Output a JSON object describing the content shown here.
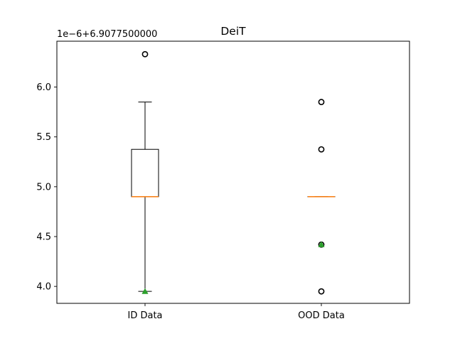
{
  "chart_data": {
    "type": "box",
    "title": "DeiT",
    "offset_label": "1e−6+6.9077500000",
    "xlabel": "",
    "ylabel": "",
    "categories": [
      "ID Data",
      "OOD Data"
    ],
    "ylim": [
      3.83,
      6.46
    ],
    "y_ticks": [
      4.0,
      4.5,
      5.0,
      5.5,
      6.0
    ],
    "y_tick_labels": [
      "4.0",
      "4.5",
      "5.0",
      "5.5",
      "6.0"
    ],
    "grid": false,
    "boxes": [
      {
        "category": "ID Data",
        "whisker_low": 3.95,
        "q1": 4.9,
        "median": 4.9,
        "q3": 5.375,
        "whisker_high": 5.85,
        "mean": 3.95,
        "fliers": [
          6.33
        ]
      },
      {
        "category": "OOD Data",
        "whisker_low": 4.9,
        "q1": 4.9,
        "median": 4.9,
        "q3": 4.9,
        "whisker_high": 4.9,
        "mean": 4.42,
        "fliers": [
          3.95,
          4.42,
          5.375,
          5.85
        ]
      }
    ],
    "colors": {
      "box": "#000000",
      "median": "#ff7f0e",
      "mean_marker": "#2ca02c",
      "flier_edge": "#000000"
    }
  }
}
